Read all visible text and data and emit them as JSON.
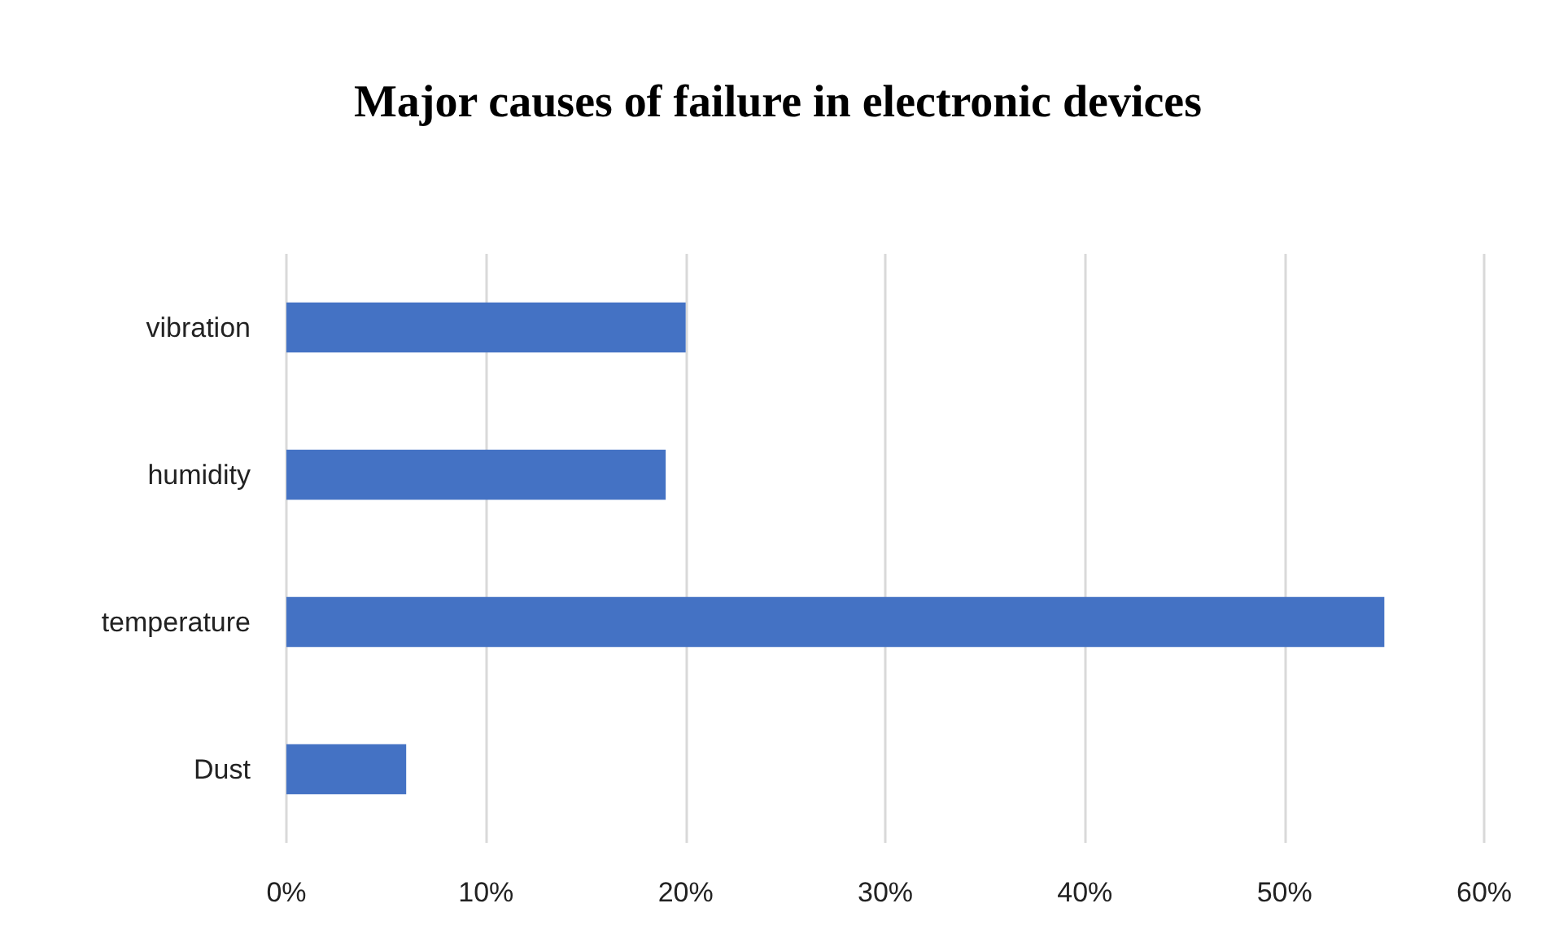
{
  "chart_data": {
    "type": "bar",
    "orientation": "horizontal",
    "title": "Major causes of failure in electronic devices",
    "categories": [
      "vibration",
      "humidity",
      "temperature",
      "Dust"
    ],
    "values": [
      20,
      19,
      55,
      6
    ],
    "color": "#4472c4",
    "xlim": [
      0,
      60
    ],
    "xticks": [
      {
        "value": 0,
        "label": "0%"
      },
      {
        "value": 10,
        "label": "10%"
      },
      {
        "value": 20,
        "label": "20%"
      },
      {
        "value": 30,
        "label": "30%"
      },
      {
        "value": 40,
        "label": "40%"
      },
      {
        "value": 50,
        "label": "50%"
      },
      {
        "value": 60,
        "label": "60%"
      }
    ],
    "grid": "x"
  }
}
